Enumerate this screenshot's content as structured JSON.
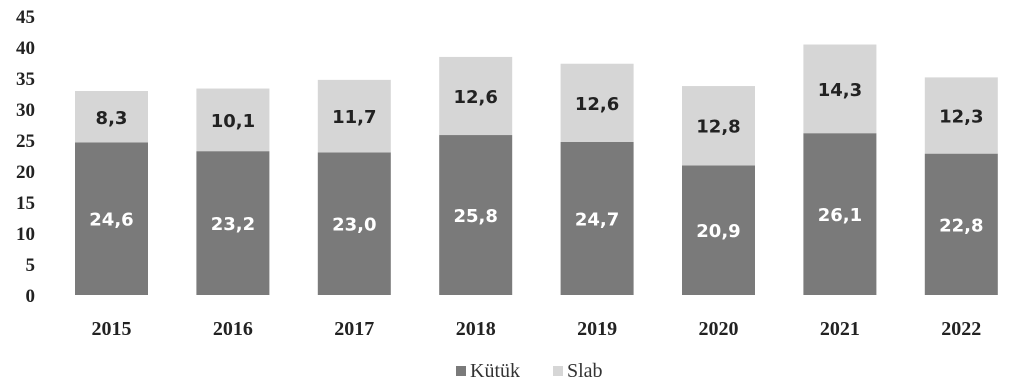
{
  "chart_data": {
    "type": "bar",
    "stacked": true,
    "title": "",
    "xlabel": "",
    "ylabel": "",
    "categories": [
      "2015",
      "2016",
      "2017",
      "2018",
      "2019",
      "2020",
      "2021",
      "2022"
    ],
    "series": [
      {
        "name": "Kütük",
        "values": [
          24.6,
          23.2,
          23.0,
          25.8,
          24.7,
          20.9,
          26.1,
          22.8
        ],
        "color": "#7a7a7a"
      },
      {
        "name": "Slab",
        "values": [
          8.3,
          10.1,
          11.7,
          12.6,
          12.6,
          12.8,
          14.3,
          12.3
        ],
        "color": "#d6d6d6"
      }
    ],
    "data_labels": {
      "Kütük": [
        "24,6",
        "23,2",
        "23,0",
        "25,8",
        "24,7",
        "20,9",
        "26,1",
        "22,8"
      ],
      "Slab": [
        "8,3",
        "10,1",
        "11,7",
        "12,6",
        "12,6",
        "12,8",
        "14,3",
        "12,3"
      ]
    },
    "ylim": [
      0,
      45
    ],
    "yticks": [
      "0",
      "5",
      "10",
      "15",
      "20",
      "25",
      "30",
      "35",
      "40",
      "45"
    ],
    "grid": false,
    "legend": "bottom-center"
  }
}
